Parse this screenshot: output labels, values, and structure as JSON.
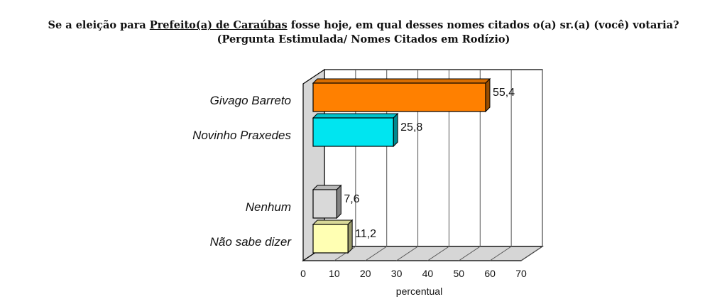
{
  "chart_data": {
    "type": "bar",
    "orientation": "horizontal",
    "style": "3d",
    "title_before": "Se a eleição para ",
    "title_underlined": "Prefeito(a) de Caraúbas",
    "title_after": " fosse hoje, em qual desses nomes citados o(a) sr.(a) (você) votaria?",
    "subtitle": "(Pergunta Estimulada/ Nomes Citados em Rodízio)",
    "xlabel": "percentual",
    "xlim": [
      0,
      70
    ],
    "xticks": [
      0,
      10,
      20,
      30,
      40,
      50,
      60,
      70
    ],
    "grid": true,
    "legend": "none",
    "bars": [
      {
        "label": "Givago Barreto",
        "value": 55.4,
        "value_label": "55,4",
        "color": "#ff8000"
      },
      {
        "label": "Novinho Praxedes",
        "value": 25.8,
        "value_label": "25,8",
        "color": "#00e5f0"
      },
      {
        "label": "Nenhum",
        "value": 7.6,
        "value_label": "7,6",
        "color": "#d9d9d9"
      },
      {
        "label": "Não sabe dizer",
        "value": 11.2,
        "value_label": "11,2",
        "color": "#ffffb3"
      }
    ]
  }
}
